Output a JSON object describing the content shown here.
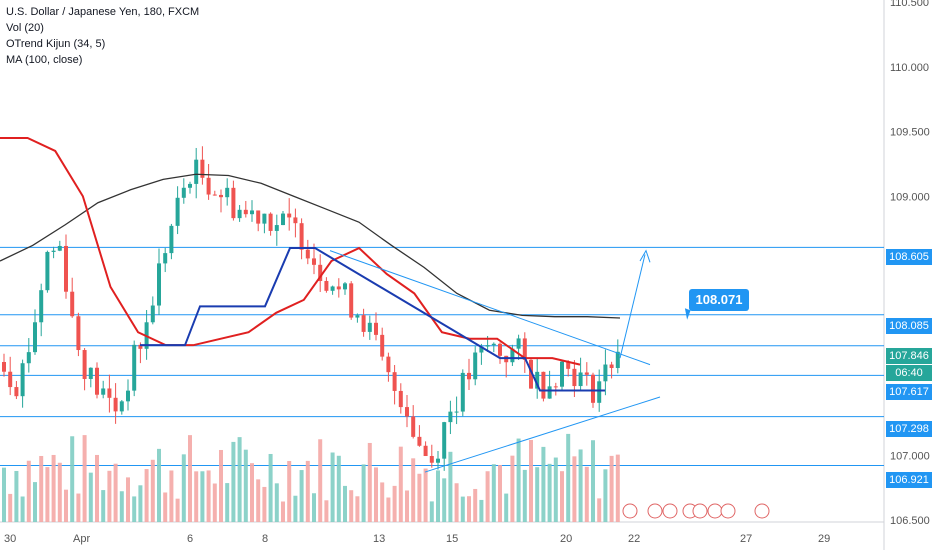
{
  "legend": {
    "title": "U.S. Dollar / Japanese Yen, 180, FXCM",
    "vol": "Vol (20)",
    "otrend": "OTrend Kijun (34, 5)",
    "ma": "MA (100, close)"
  },
  "colors": {
    "up": "#26a69a",
    "down": "#ef5350",
    "kijun_red": "#e02020",
    "kijun_blue": "#1a3cb0",
    "ma": "#333333",
    "level": "#2196f3",
    "vol_up": "#7fcdc3",
    "vol_down": "#f4a7a5"
  },
  "chart_data": {
    "type": "candlestick",
    "symbol": "U.S. Dollar / Japanese Yen",
    "timeframe": "180",
    "source": "FXCM",
    "x_tick_labels": [
      "30",
      "Apr",
      "6",
      "8",
      "13",
      "15",
      "20",
      "22",
      "27",
      "29"
    ],
    "y_tick_labels": [
      "106.500",
      "107.000",
      "107.500",
      "108.000",
      "108.500",
      "109.000",
      "109.500",
      "110.000",
      "110.500"
    ],
    "ylim": [
      106.5,
      110.5
    ],
    "horizontal_levels": [
      108.605,
      108.085,
      107.846,
      107.617,
      107.298,
      106.921
    ],
    "price_labels": {
      "level_108605": "108.605",
      "level_108085": "108.085",
      "current": "107.846",
      "countdown": "06:40",
      "level_107617": "107.617",
      "level_107298": "107.298",
      "level_106921": "106.921"
    },
    "projection_target_label": "108.071",
    "series": [
      {
        "name": "Vol (20)",
        "type": "volume"
      },
      {
        "name": "OTrend Kijun (34, 5)",
        "type": "line"
      },
      {
        "name": "MA (100, close)",
        "type": "line"
      }
    ],
    "candles_approx_closes": [
      107.72,
      107.55,
      107.95,
      108.55,
      108.62,
      107.9,
      107.6,
      107.45,
      107.35,
      107.7,
      108.0,
      108.5,
      108.85,
      109.2,
      109.15,
      109.05,
      108.95,
      108.85,
      108.9,
      108.8,
      108.75,
      108.7,
      108.45,
      108.35,
      108.2,
      108.1,
      107.85,
      107.55,
      107.45,
      107.1,
      106.95,
      107.3,
      107.5,
      107.7,
      107.85,
      107.78,
      107.8,
      107.6,
      107.55,
      107.7,
      107.65,
      107.5,
      107.6,
      107.85
    ],
    "kijun_red_approx": [
      109.45,
      109.45,
      109.35,
      109.0,
      108.3,
      107.95,
      107.85,
      107.85,
      107.9,
      107.95,
      108.1,
      108.2,
      108.5,
      108.6,
      108.4,
      108.25,
      107.95,
      107.9,
      107.9,
      107.75,
      107.75,
      107.7
    ],
    "ma_approx": [
      108.5,
      108.62,
      108.78,
      108.95,
      109.05,
      109.13,
      109.17,
      109.16,
      109.1,
      109.0,
      108.9,
      108.8,
      108.62,
      108.45,
      108.25,
      108.12,
      108.08,
      108.07,
      108.07,
      108.06
    ]
  }
}
